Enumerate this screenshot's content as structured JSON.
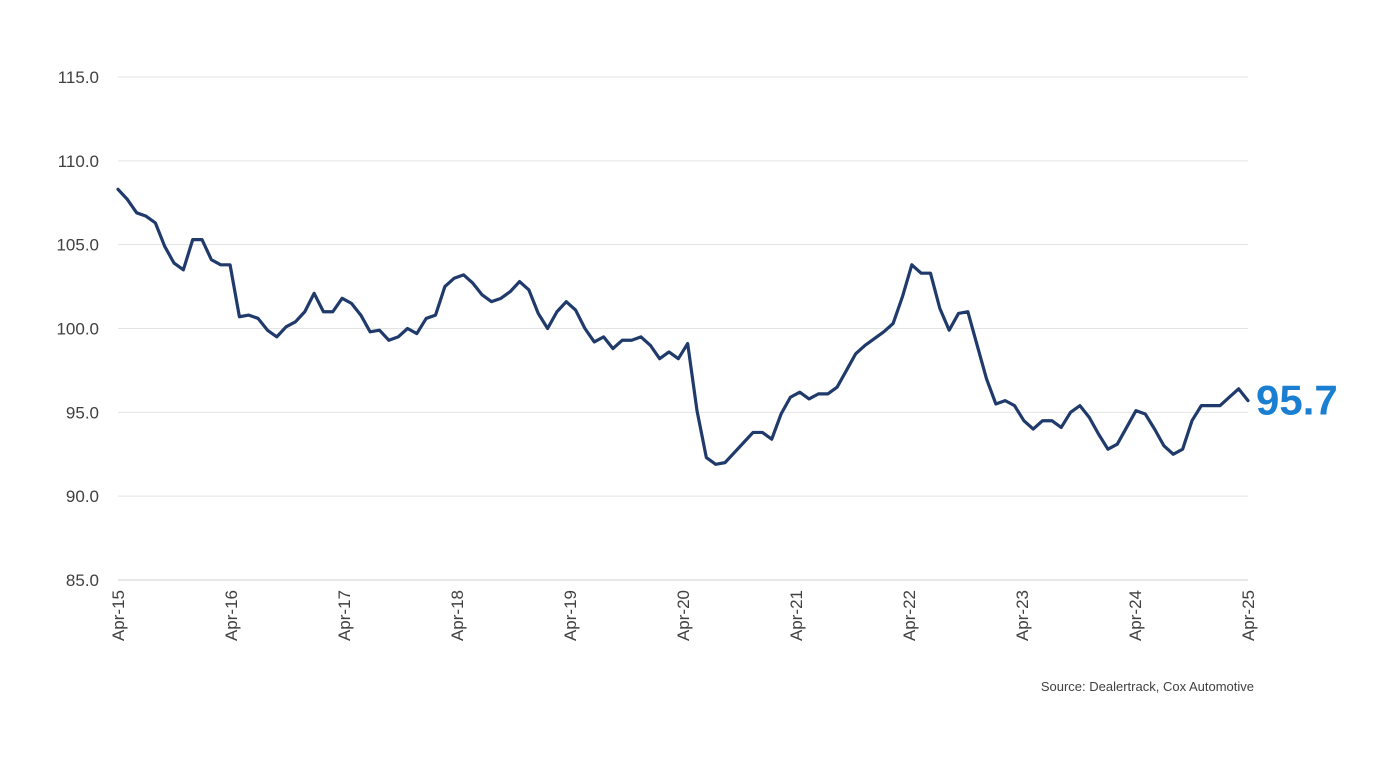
{
  "chart_data": {
    "type": "line",
    "ylim": [
      85.0,
      115.0
    ],
    "y_ticks": [
      "85.0",
      "90.0",
      "95.0",
      "100.0",
      "105.0",
      "110.0",
      "115.0"
    ],
    "x_tick_labels": [
      "Apr-15",
      "Apr-16",
      "Apr-17",
      "Apr-18",
      "Apr-19",
      "Apr-20",
      "Apr-21",
      "Apr-22",
      "Apr-23",
      "Apr-24",
      "Apr-25"
    ],
    "grid": "horizontal",
    "line_color": "#1f3a6b",
    "end_label": "95.7",
    "end_label_color": "#1a7fd1",
    "series": [
      {
        "values": [
          108.3,
          107.7,
          106.9,
          106.7,
          106.3,
          104.9,
          103.9,
          103.5,
          105.3,
          105.3,
          104.1,
          103.8,
          103.8,
          100.7,
          100.8,
          100.6,
          99.9,
          99.5,
          100.1,
          100.4,
          101.0,
          102.1,
          101.0,
          101.0,
          101.8,
          101.5,
          100.8,
          99.8,
          99.9,
          99.3,
          99.5,
          100.0,
          99.7,
          100.6,
          100.8,
          102.5,
          103.0,
          103.2,
          102.7,
          102.0,
          101.6,
          101.8,
          102.2,
          102.8,
          102.3,
          100.9,
          100.0,
          101.0,
          101.6,
          101.1,
          100.0,
          99.2,
          99.5,
          98.8,
          99.3,
          99.3,
          99.5,
          99.0,
          98.2,
          98.6,
          98.2,
          99.1,
          95.1,
          92.3,
          91.9,
          92.0,
          92.6,
          93.2,
          93.8,
          93.8,
          93.4,
          94.9,
          95.9,
          96.2,
          95.8,
          96.1,
          96.1,
          96.5,
          97.5,
          98.5,
          99.0,
          99.4,
          99.8,
          100.3,
          101.9,
          103.8,
          103.3,
          103.3,
          101.2,
          99.9,
          100.9,
          101.0,
          99.0,
          97.0,
          95.5,
          95.7,
          95.4,
          94.5,
          94.0,
          94.5,
          94.5,
          94.1,
          95.0,
          95.4,
          94.7,
          93.7,
          92.8,
          93.1,
          94.1,
          95.1,
          94.9,
          94.0,
          93.0,
          92.5,
          92.8,
          94.5,
          95.4,
          95.4,
          95.4,
          95.9,
          96.4,
          95.7
        ]
      }
    ]
  },
  "source_text": "Source: Dealertrack, Cox Automotive"
}
